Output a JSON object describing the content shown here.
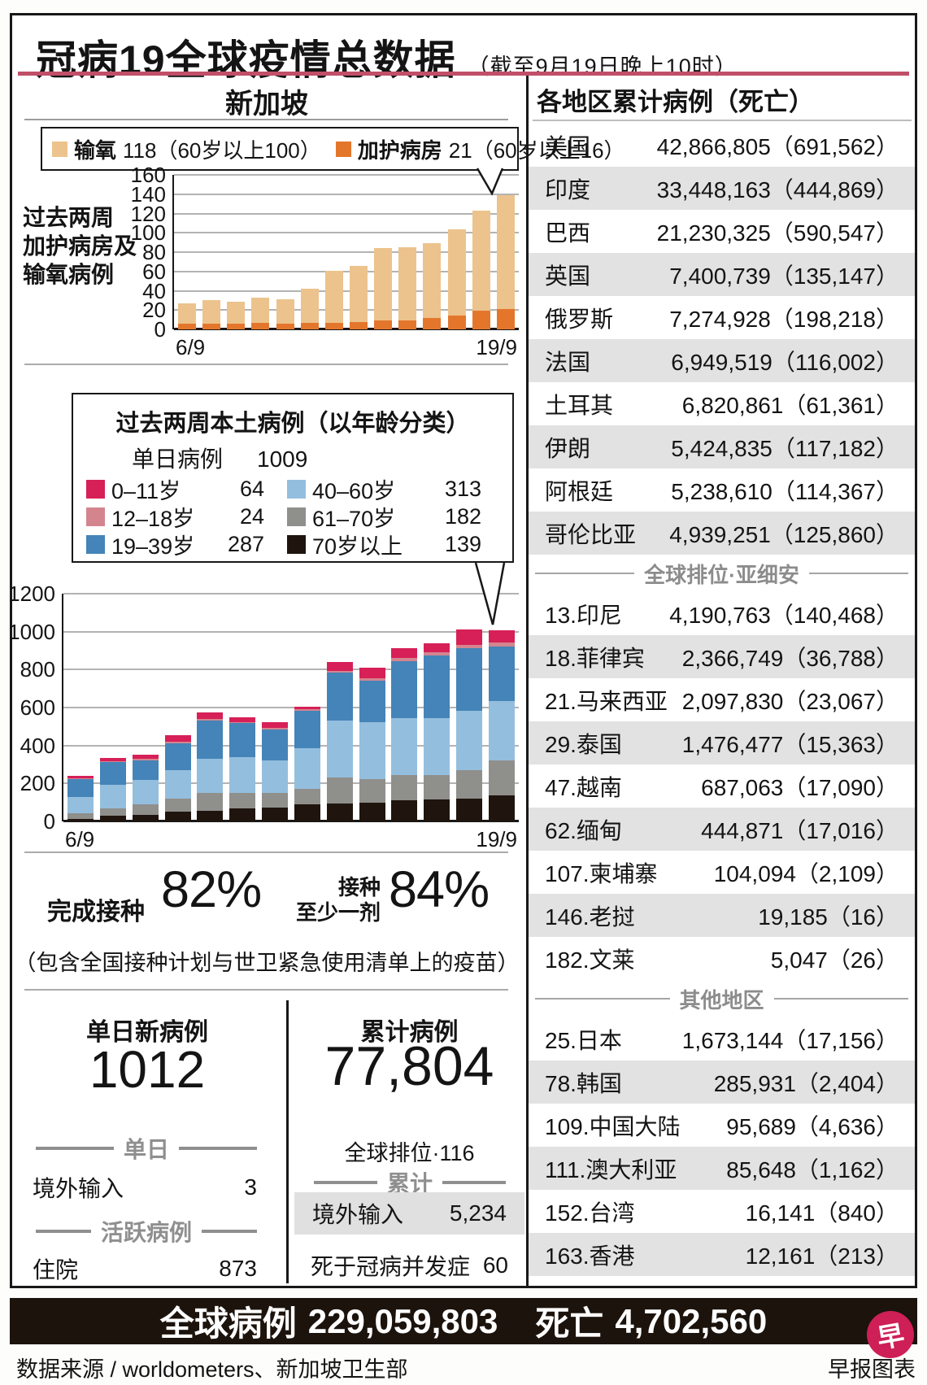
{
  "title": {
    "main": "冠病19全球疫情总数据",
    "date_note": "（截至9月19日晚上10时）"
  },
  "singapore": {
    "header": "新加坡"
  },
  "chart_data": [
    {
      "id": "icu_oxygen_chart",
      "type": "bar",
      "stacked": true,
      "title": "过去两周加护病房及输氧病例",
      "title_lines": [
        "过去两周",
        "加护病房及",
        "输氧病例"
      ],
      "legend": [
        {
          "label": "输氧",
          "value": "118（60岁以上100）",
          "color": "#ecc38c"
        },
        {
          "label": "加护病房",
          "value": "21（60岁以上16）",
          "color": "#e4762c"
        }
      ],
      "x": [
        "6/9",
        "7/9",
        "8/9",
        "9/9",
        "10/9",
        "11/9",
        "12/9",
        "13/9",
        "14/9",
        "15/9",
        "16/9",
        "17/9",
        "18/9",
        "19/9"
      ],
      "visible_x_ticks": [
        "6/9",
        "19/9"
      ],
      "ylim": [
        0,
        160
      ],
      "ytick_step": 20,
      "grid": true,
      "series": [
        {
          "name": "加护病房",
          "color": "#e4762c",
          "values": [
            6,
            6,
            6,
            7,
            6,
            7,
            7,
            8,
            9,
            9,
            12,
            14,
            19,
            21
          ]
        },
        {
          "name": "输氧",
          "color": "#ecc38c",
          "values": [
            21,
            24,
            23,
            26,
            25,
            35,
            54,
            58,
            75,
            76,
            77,
            90,
            104,
            118
          ]
        }
      ]
    },
    {
      "id": "age_chart",
      "type": "bar",
      "stacked": true,
      "box_title": "过去两周本土病例（以年龄分类）",
      "daily_label": "单日病例",
      "daily_value": "1009",
      "legend_columns": [
        [
          {
            "label": "0–11岁",
            "value": "64",
            "color": "#d62057"
          },
          {
            "label": "12–18岁",
            "value": "24",
            "color": "#d4848f"
          },
          {
            "label": "19–39岁",
            "value": "287",
            "color": "#4484b8"
          }
        ],
        [
          {
            "label": "40–60岁",
            "value": "313",
            "color": "#94bede"
          },
          {
            "label": "61–70岁",
            "value": "182",
            "color": "#8f8f8b"
          },
          {
            "label": "70岁以上",
            "value": "139",
            "color": "#1f150e"
          }
        ]
      ],
      "x": [
        "6/9",
        "7/9",
        "8/9",
        "9/9",
        "10/9",
        "11/9",
        "12/9",
        "13/9",
        "14/9",
        "15/9",
        "16/9",
        "17/9",
        "18/9",
        "19/9"
      ],
      "visible_x_ticks": [
        "6/9",
        "19/9"
      ],
      "ylim": [
        0,
        1200
      ],
      "ytick_step": 200,
      "grid": true,
      "series": [
        {
          "name": "70岁以上",
          "color": "#1f150e",
          "values": [
            15,
            30,
            35,
            50,
            55,
            70,
            75,
            90,
            95,
            100,
            110,
            115,
            120,
            139
          ]
        },
        {
          "name": "61–70岁",
          "color": "#8f8f8b",
          "values": [
            30,
            40,
            55,
            70,
            95,
            80,
            75,
            80,
            135,
            125,
            135,
            130,
            150,
            182
          ]
        },
        {
          "name": "40–60岁",
          "color": "#94bede",
          "values": [
            83,
            121,
            127,
            152,
            180,
            187,
            170,
            215,
            300,
            300,
            300,
            300,
            315,
            313
          ]
        },
        {
          "name": "19–39岁",
          "color": "#4484b8",
          "values": [
            95,
            120,
            105,
            140,
            200,
            180,
            165,
            197,
            255,
            218,
            300,
            330,
            330,
            287
          ]
        },
        {
          "name": "12–18岁",
          "color": "#d4848f",
          "values": [
            5,
            6,
            8,
            8,
            10,
            8,
            10,
            8,
            10,
            12,
            15,
            15,
            15,
            24
          ]
        },
        {
          "name": "0–11岁",
          "color": "#d62057",
          "values": [
            12,
            18,
            20,
            35,
            35,
            25,
            30,
            15,
            45,
            55,
            55,
            50,
            80,
            64
          ]
        }
      ]
    }
  ],
  "vaccination": {
    "full_label": "完成接种",
    "full_value": "82%",
    "partial_label_top": "接种",
    "partial_label_bottom": "至少一剂",
    "partial_value": "84%",
    "note": "（包含全国接种计划与世卫紧急使用清单上的疫苗）"
  },
  "daily_stats": {
    "title": "单日新病例",
    "value": "1012",
    "divider_daily": "单日",
    "imported_label": "境外输入",
    "imported_value": "3",
    "divider_active": "活跃病例",
    "hospitalized_label": "住院",
    "hospitalized_value": "873"
  },
  "cumulative_stats": {
    "title": "累计病例",
    "value": "77,804",
    "rank": "全球排位·116",
    "divider": "累计",
    "imported_label": "境外输入",
    "imported_value": "5,234",
    "deaths_label": "死于冠病并发症",
    "deaths_value": "60"
  },
  "regions": {
    "header": "各地区累计病例（死亡）",
    "asean_divider": "全球排位·亚细安",
    "others_divider": "其他地区",
    "top": [
      {
        "name": "美国",
        "cases": "42,866,805",
        "deaths": "691,562"
      },
      {
        "name": "印度",
        "cases": "33,448,163",
        "deaths": "444,869"
      },
      {
        "name": "巴西",
        "cases": "21,230,325",
        "deaths": "590,547"
      },
      {
        "name": "英国",
        "cases": "7,400,739",
        "deaths": "135,147"
      },
      {
        "name": "俄罗斯",
        "cases": "7,274,928",
        "deaths": "198,218"
      },
      {
        "name": "法国",
        "cases": "6,949,519",
        "deaths": "116,002"
      },
      {
        "name": "土耳其",
        "cases": "6,820,861",
        "deaths": "61,361"
      },
      {
        "name": "伊朗",
        "cases": "5,424,835",
        "deaths": "117,182"
      },
      {
        "name": "阿根廷",
        "cases": "5,238,610",
        "deaths": "114,367"
      },
      {
        "name": "哥伦比亚",
        "cases": "4,939,251",
        "deaths": "125,860"
      }
    ],
    "asean": [
      {
        "name": "13.印尼",
        "cases": "4,190,763",
        "deaths": "140,468"
      },
      {
        "name": "18.菲律宾",
        "cases": "2,366,749",
        "deaths": "36,788"
      },
      {
        "name": "21.马来西亚",
        "cases": "2,097,830",
        "deaths": "23,067"
      },
      {
        "name": "29.泰国",
        "cases": "1,476,477",
        "deaths": "15,363"
      },
      {
        "name": "47.越南",
        "cases": "687,063",
        "deaths": "17,090"
      },
      {
        "name": "62.缅甸",
        "cases": "444,871",
        "deaths": "17,016"
      },
      {
        "name": "107.柬埔寨",
        "cases": "104,094",
        "deaths": "2,109"
      },
      {
        "name": "146.老挝",
        "cases": "19,185",
        "deaths": "16"
      },
      {
        "name": "182.文莱",
        "cases": "5,047",
        "deaths": "26"
      }
    ],
    "others": [
      {
        "name": "25.日本",
        "cases": "1,673,144",
        "deaths": "17,156"
      },
      {
        "name": "78.韩国",
        "cases": "285,931",
        "deaths": "2,404"
      },
      {
        "name": "109.中国大陆",
        "cases": "95,689",
        "deaths": "4,636"
      },
      {
        "name": "111.澳大利亚",
        "cases": "85,648",
        "deaths": "1,162"
      },
      {
        "name": "152.台湾",
        "cases": "16,141",
        "deaths": "840"
      },
      {
        "name": "163.香港",
        "cases": "12,161",
        "deaths": "213"
      }
    ]
  },
  "banner": {
    "cases_label": "全球病例",
    "cases_value": "229,059,803",
    "deaths_label": "死亡",
    "deaths_value": "4,702,560"
  },
  "footer": {
    "source": "数据来源 / worldometers、新加坡卫生部",
    "credit": "早报图表",
    "logo_char": "早"
  },
  "colors": {
    "accent_rule": "#c14f68",
    "row_alt": "#e2e2e2",
    "banner_bg": "#1c130d",
    "logo": "#ce1f57"
  }
}
